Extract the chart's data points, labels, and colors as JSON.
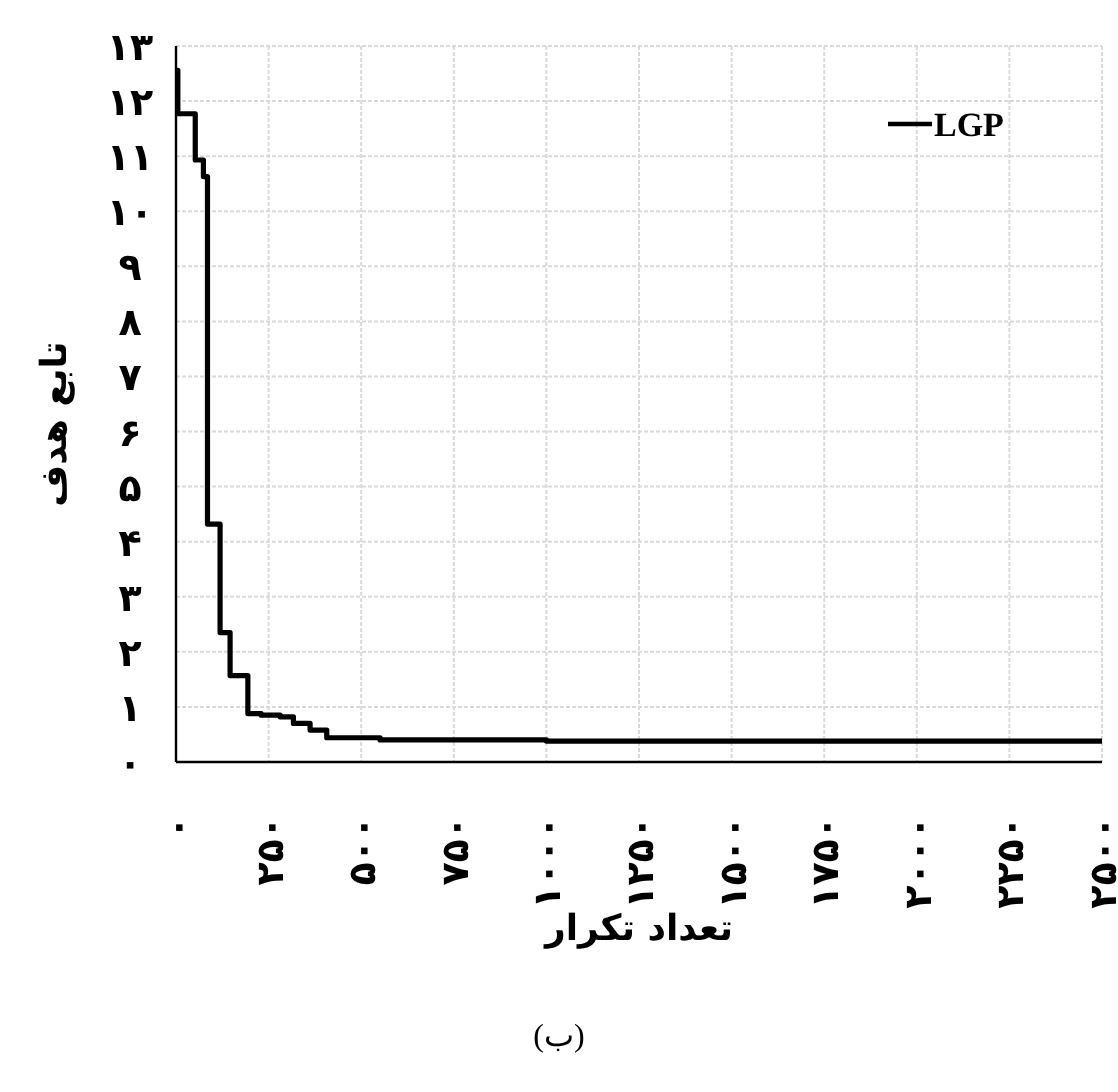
{
  "chart_data": {
    "type": "step",
    "xlabel": "تعداد تکرار",
    "ylabel": "تابع هدف",
    "annotations": [
      "(ب)"
    ],
    "series": [
      {
        "name": "LGP",
        "color": "#000000",
        "x": [
          0,
          5,
          52,
          74,
          85,
          119,
          146,
          194,
          230,
          281,
          317,
          362,
          407,
          551,
          1000,
          2500
        ],
        "values": [
          12.56,
          11.77,
          10.93,
          10.63,
          4.32,
          2.35,
          1.57,
          0.88,
          0.85,
          0.82,
          0.7,
          0.58,
          0.44,
          0.4,
          0.38,
          0.38
        ]
      }
    ],
    "xlim": [
      0,
      2500
    ],
    "ylim": [
      0,
      13
    ],
    "xticks": [
      {
        "value": 0,
        "label": "۰"
      },
      {
        "value": 250,
        "label": "۲۵۰"
      },
      {
        "value": 500,
        "label": "۵۰۰"
      },
      {
        "value": 750,
        "label": "۷۵۰"
      },
      {
        "value": 1000,
        "label": "۱۰۰۰"
      },
      {
        "value": 1250,
        "label": "۱۲۵۰"
      },
      {
        "value": 1500,
        "label": "۱۵۰۰"
      },
      {
        "value": 1750,
        "label": "۱۷۵۰"
      },
      {
        "value": 2000,
        "label": "۲۰۰۰"
      },
      {
        "value": 2250,
        "label": "۲۲۵۰"
      },
      {
        "value": 2500,
        "label": "۲۵۰۰"
      }
    ],
    "yticks": [
      {
        "value": 0,
        "label": "۰"
      },
      {
        "value": 1,
        "label": "۱"
      },
      {
        "value": 2,
        "label": "۲"
      },
      {
        "value": 3,
        "label": "۳"
      },
      {
        "value": 4,
        "label": "۴"
      },
      {
        "value": 5,
        "label": "۵"
      },
      {
        "value": 6,
        "label": "۶"
      },
      {
        "value": 7,
        "label": "۷"
      },
      {
        "value": 8,
        "label": "۸"
      },
      {
        "value": 9,
        "label": "۹"
      },
      {
        "value": 10,
        "label": "۱۰"
      },
      {
        "value": 11,
        "label": "۱۱"
      },
      {
        "value": 12,
        "label": "۱۲"
      },
      {
        "value": 13,
        "label": "۱۳"
      }
    ],
    "grid": true,
    "legend": "top right",
    "marker": "none",
    "line_style": "solid"
  }
}
